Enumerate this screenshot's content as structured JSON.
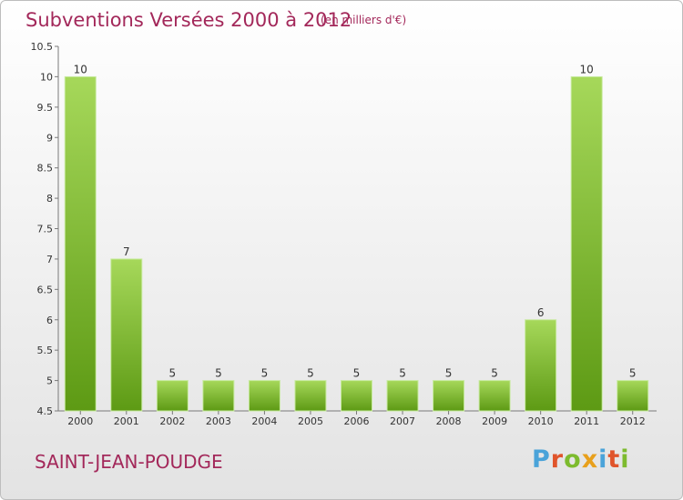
{
  "header": {
    "title": "Subventions Versées 2000 à 2012",
    "unit": "(en milliers d'€)"
  },
  "footer": {
    "commune": "SAINT-JEAN-POUDGE",
    "logo_text": "Proxiti"
  },
  "colors": {
    "title": "#a3285a",
    "bar_light": "#a6d85a",
    "bar_dark": "#5d9a14",
    "logo_letters": [
      "#4aa3d9",
      "#e0542b",
      "#7dbb2e",
      "#e8a01c",
      "#4aa3d9",
      "#e0542b",
      "#7dbb2e"
    ]
  },
  "chart_data": {
    "type": "bar",
    "title": "Subventions Versées 2000 à 2012",
    "subtitle": "(en milliers d'€)",
    "xlabel": "",
    "ylabel": "",
    "categories": [
      "2000",
      "2001",
      "2002",
      "2003",
      "2004",
      "2005",
      "2006",
      "2007",
      "2008",
      "2009",
      "2010",
      "2011",
      "2012"
    ],
    "values": [
      10,
      7,
      5,
      5,
      5,
      5,
      5,
      5,
      5,
      5,
      6,
      10,
      5
    ],
    "ylim": [
      4.5,
      10.5
    ],
    "yticks": [
      "4.5",
      "5",
      "5.5",
      "6",
      "6.5",
      "7",
      "7.5",
      "8",
      "8.5",
      "9",
      "9.5",
      "10",
      "10.5"
    ],
    "grid": false,
    "legend": "none"
  }
}
